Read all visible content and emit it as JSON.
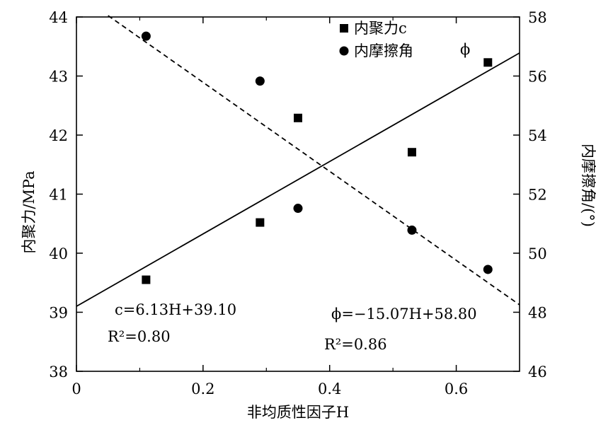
{
  "chart_data": {
    "type": "scatter",
    "xlabel": "非均质性因子H",
    "ylabel_left": "内聚力/MPa",
    "ylabel_right": "内摩擦角/(°)",
    "xlim": [
      0,
      0.7
    ],
    "ylim_left": [
      38,
      44
    ],
    "ylim_right": [
      46,
      58
    ],
    "x_ticks": [
      0,
      0.2,
      0.4,
      0.6
    ],
    "x_tick_labels": [
      "0",
      "0.2",
      "0.4",
      "0.6"
    ],
    "y_left_ticks": [
      38,
      39,
      40,
      41,
      42,
      43,
      44
    ],
    "y_left_tick_labels": [
      "38",
      "39",
      "40",
      "41",
      "42",
      "43",
      "44"
    ],
    "y_right_ticks": [
      46,
      48,
      50,
      52,
      54,
      56,
      58
    ],
    "y_right_tick_labels": [
      "46",
      "48",
      "50",
      "52",
      "54",
      "56",
      "58"
    ],
    "grid": false,
    "legend_position": "top-right",
    "series": [
      {
        "name": "内聚力c",
        "marker": "square",
        "axis": "left",
        "x": [
          0.11,
          0.29,
          0.35,
          0.53,
          0.65
        ],
        "y": [
          39.55,
          40.52,
          42.29,
          41.71,
          43.23
        ]
      },
      {
        "name": "内摩擦角",
        "marker": "circle",
        "axis": "right",
        "x": [
          0.11,
          0.29,
          0.35,
          0.53,
          0.65
        ],
        "y": [
          57.35,
          55.83,
          51.52,
          50.78,
          49.45
        ]
      }
    ],
    "fit_lines": [
      {
        "series": "内聚力c",
        "style": "solid",
        "axis": "left",
        "slope": 6.13,
        "intercept": 39.1,
        "x_range": [
          0,
          0.7
        ]
      },
      {
        "series": "内摩擦角",
        "style": "dashed",
        "axis": "right",
        "slope": -15.07,
        "intercept": 58.8,
        "x_range": [
          0.05,
          0.7
        ]
      }
    ],
    "annotations": {
      "eq1_text": "c=6.13H+39.10",
      "eq1_r2": "R²=0.80",
      "eq2_text": "ϕ=−15.07H+58.80",
      "eq2_r2": "R²=0.86",
      "phi_symbol": "ϕ"
    }
  }
}
